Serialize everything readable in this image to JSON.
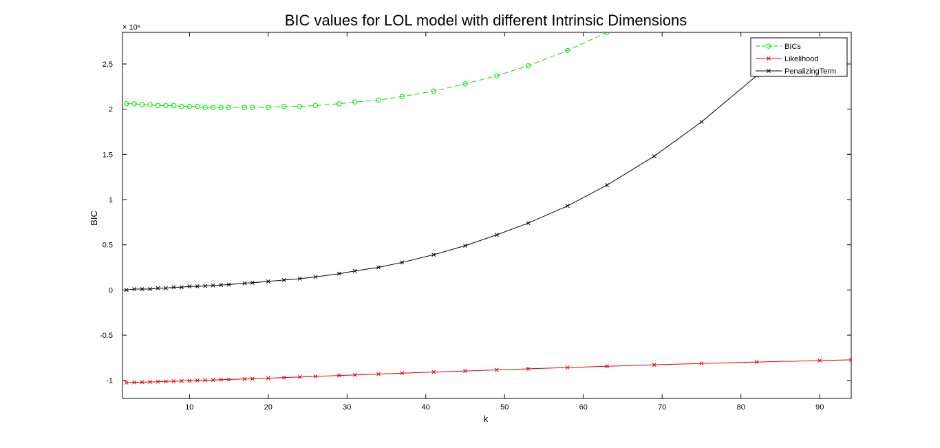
{
  "chart_data": {
    "type": "line",
    "title": "BIC values for LOL model with different Intrinsic Dimensions",
    "xlabel": "k",
    "ylabel": "BIC",
    "y_exponent": "× 10⁶",
    "xlim": [
      1.5,
      94
    ],
    "ylim": [
      -1.2,
      2.85
    ],
    "xticks": [
      10,
      20,
      30,
      40,
      50,
      60,
      70,
      80,
      90
    ],
    "yticks": [
      -1,
      -0.5,
      0,
      0.5,
      1,
      1.5,
      2,
      2.5
    ],
    "ytick_labels": [
      "-1",
      "-0.5",
      "0",
      "0.5",
      "1",
      "1.5",
      "2",
      "2.5"
    ],
    "legend_position": "top-right",
    "grid": false,
    "series": [
      {
        "name": "BICs",
        "color": "#00e000",
        "marker": "circle",
        "line": "dashed",
        "x": [
          2,
          3,
          4,
          5,
          6,
          7,
          8,
          9,
          10,
          11,
          12,
          13,
          14,
          15,
          17,
          18,
          20,
          22,
          24,
          26,
          29,
          31,
          34,
          37,
          41,
          45,
          49,
          53,
          58,
          63
        ],
        "y": [
          2.06,
          2.06,
          2.05,
          2.05,
          2.04,
          2.04,
          2.04,
          2.03,
          2.03,
          2.03,
          2.02,
          2.02,
          2.02,
          2.02,
          2.02,
          2.02,
          2.02,
          2.03,
          2.03,
          2.04,
          2.06,
          2.08,
          2.1,
          2.14,
          2.2,
          2.28,
          2.37,
          2.48,
          2.65,
          2.85
        ]
      },
      {
        "name": "Likelihood",
        "color": "#e00000",
        "marker": "x",
        "line": "solid",
        "x": [
          2,
          3,
          4,
          5,
          6,
          7,
          8,
          9,
          10,
          11,
          12,
          13,
          14,
          15,
          17,
          18,
          20,
          22,
          24,
          26,
          29,
          31,
          34,
          37,
          41,
          45,
          49,
          53,
          58,
          63,
          69,
          75,
          82,
          90,
          94
        ],
        "y": [
          -1.025,
          -1.022,
          -1.02,
          -1.017,
          -1.015,
          -1.012,
          -1.01,
          -1.007,
          -1.004,
          -1.002,
          -0.999,
          -0.996,
          -0.993,
          -0.99,
          -0.985,
          -0.982,
          -0.976,
          -0.969,
          -0.963,
          -0.956,
          -0.946,
          -0.94,
          -0.93,
          -0.92,
          -0.908,
          -0.896,
          -0.884,
          -0.872,
          -0.858,
          -0.844,
          -0.828,
          -0.813,
          -0.797,
          -0.781,
          -0.773
        ]
      },
      {
        "name": "PenalizingTerm",
        "color": "#000000",
        "marker": "x",
        "line": "solid",
        "x": [
          2,
          3,
          4,
          5,
          6,
          7,
          8,
          9,
          10,
          11,
          12,
          13,
          14,
          15,
          17,
          18,
          20,
          22,
          24,
          26,
          29,
          31,
          34,
          37,
          41,
          45,
          49,
          53,
          58,
          63,
          69,
          75,
          82,
          86
        ],
        "y": [
          0.0,
          0.01,
          0.01,
          0.01,
          0.02,
          0.02,
          0.03,
          0.03,
          0.04,
          0.04,
          0.045,
          0.05,
          0.055,
          0.06,
          0.075,
          0.08,
          0.095,
          0.11,
          0.125,
          0.145,
          0.18,
          0.21,
          0.25,
          0.305,
          0.39,
          0.49,
          0.61,
          0.74,
          0.93,
          1.16,
          1.48,
          1.86,
          2.37,
          2.7
        ]
      }
    ]
  }
}
